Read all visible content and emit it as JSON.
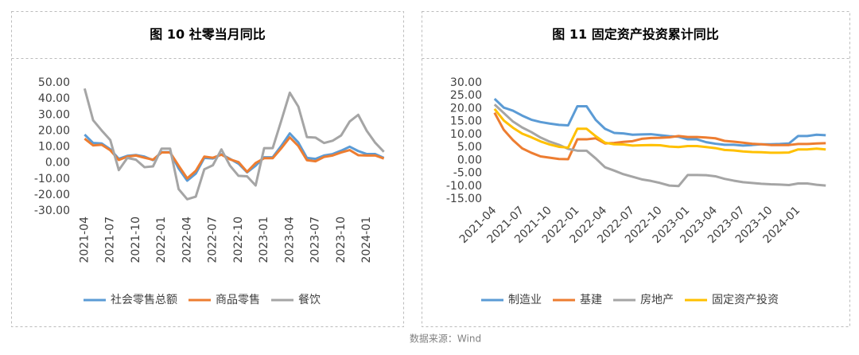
{
  "chart_data": [
    {
      "type": "line",
      "title": "图 10 社零当月同比",
      "categories": [
        "2021-04",
        null,
        null,
        "2021-07",
        null,
        null,
        "2021-10",
        null,
        null,
        "2022-01",
        null,
        null,
        "2022-04",
        null,
        null,
        "2022-07",
        null,
        null,
        "2022-10",
        null,
        null,
        "2023-01",
        null,
        null,
        "2023-04",
        null,
        null,
        "2023-07",
        null,
        null,
        "2023-10",
        null,
        null,
        "2024-01",
        null,
        null
      ],
      "series": [
        {
          "name": "社会零售总额",
          "color": "#5b9bd5",
          "values": [
            17.7,
            12.4,
            12.1,
            8.5,
            2.5,
            4.4,
            4.9,
            3.9,
            1.7,
            6.7,
            6.7,
            -3.5,
            -11.1,
            -6.7,
            3.1,
            2.7,
            5.4,
            2.5,
            -0.5,
            -5.9,
            -1.8,
            3.5,
            3.5,
            10.6,
            18.4,
            12.7,
            3.1,
            2.5,
            4.6,
            5.5,
            7.6,
            10.1,
            7.4,
            5.5,
            5.5,
            3.1
          ]
        },
        {
          "name": "商品零售",
          "color": "#ed7d31",
          "values": [
            15.1,
            10.9,
            11.3,
            7.9,
            1.8,
            3.9,
            4.6,
            3.2,
            2.0,
            6.5,
            6.5,
            -1.8,
            -9.7,
            -5.0,
            3.9,
            3.2,
            5.1,
            2.2,
            0.5,
            -5.6,
            -0.1,
            2.9,
            2.9,
            9.1,
            15.9,
            10.5,
            1.7,
            1.0,
            3.7,
            4.6,
            6.5,
            8.0,
            4.8,
            4.6,
            4.6,
            2.7
          ]
        },
        {
          "name": "餐饮",
          "color": "#a5a5a5",
          "values": [
            46.4,
            26.6,
            20.2,
            14.3,
            -4.5,
            3.1,
            2.0,
            -2.7,
            -2.2,
            8.9,
            8.9,
            -16.4,
            -22.7,
            -21.1,
            -4.0,
            -1.5,
            8.4,
            -1.7,
            -8.1,
            -8.4,
            -14.1,
            9.2,
            9.2,
            26.3,
            43.8,
            35.1,
            16.1,
            15.8,
            12.4,
            13.8,
            17.1,
            25.8,
            30.0,
            20.0,
            12.5,
            6.9
          ]
        }
      ],
      "ylim": [
        -30,
        50
      ],
      "yticks": [
        {
          "value": -30,
          "label": "-30.00"
        },
        {
          "value": -20,
          "label": "-20.00"
        },
        {
          "value": -10,
          "label": "-10.00"
        },
        {
          "value": 0,
          "label": "0.00"
        },
        {
          "value": 10,
          "label": "10.00"
        },
        {
          "value": 20,
          "label": "20.00"
        },
        {
          "value": 30,
          "label": "30.00"
        },
        {
          "value": 40,
          "label": "40.00"
        },
        {
          "value": 50,
          "label": "50.00"
        }
      ],
      "grid": false
    },
    {
      "type": "line",
      "title": "图 11 固定资产投资累计同比",
      "categories": [
        "2021-04",
        null,
        null,
        "2021-07",
        null,
        null,
        "2021-10",
        null,
        null,
        "2022-01",
        null,
        null,
        "2022-04",
        null,
        null,
        "2022-07",
        null,
        null,
        "2022-10",
        null,
        null,
        "2023-01",
        null,
        null,
        "2023-04",
        null,
        null,
        "2023-07",
        null,
        null,
        "2023-10",
        null,
        null,
        "2024-01",
        null,
        null,
        null
      ],
      "series": [
        {
          "name": "制造业",
          "color": "#5b9bd5",
          "values": [
            23.8,
            20.4,
            19.2,
            17.3,
            15.7,
            14.8,
            14.2,
            13.7,
            13.5,
            20.9,
            20.9,
            15.6,
            12.2,
            10.6,
            10.4,
            9.9,
            10.0,
            10.1,
            9.7,
            9.3,
            9.1,
            8.1,
            8.1,
            7.0,
            6.4,
            6.0,
            6.0,
            5.7,
            5.9,
            6.2,
            6.2,
            6.3,
            6.5,
            9.4,
            9.4,
            9.9,
            9.7
          ]
        },
        {
          "name": "基建",
          "color": "#ed7d31",
          "values": [
            18.4,
            11.8,
            7.8,
            4.6,
            2.9,
            1.5,
            1.0,
            0.5,
            0.4,
            8.1,
            8.1,
            8.5,
            6.5,
            6.7,
            7.1,
            7.4,
            8.3,
            8.6,
            8.7,
            8.9,
            9.4,
            9.0,
            9.0,
            8.8,
            8.5,
            7.5,
            7.2,
            6.8,
            6.4,
            6.2,
            5.9,
            5.9,
            5.9,
            6.3,
            6.3,
            6.5,
            6.6
          ]
        },
        {
          "name": "房地产",
          "color": "#a5a5a5",
          "values": [
            21.6,
            18.3,
            15.0,
            12.7,
            10.9,
            8.8,
            7.2,
            6.0,
            4.4,
            3.7,
            3.7,
            0.7,
            -2.7,
            -4.0,
            -5.4,
            -6.4,
            -7.4,
            -8.0,
            -8.8,
            -9.8,
            -10.0,
            -5.7,
            -5.7,
            -5.8,
            -6.2,
            -7.2,
            -7.9,
            -8.5,
            -8.8,
            -9.1,
            -9.3,
            -9.4,
            -9.6,
            -9.0,
            -9.0,
            -9.5,
            -9.8
          ]
        },
        {
          "name": "固定资产投资",
          "color": "#ffc000",
          "values": [
            19.9,
            15.4,
            12.6,
            10.3,
            8.9,
            7.3,
            6.1,
            5.2,
            4.9,
            12.2,
            12.2,
            9.3,
            6.8,
            6.2,
            6.1,
            5.7,
            5.8,
            5.9,
            5.8,
            5.3,
            5.1,
            5.5,
            5.5,
            5.1,
            4.7,
            4.0,
            3.8,
            3.4,
            3.2,
            3.1,
            2.9,
            2.9,
            3.0,
            4.2,
            4.2,
            4.5,
            4.2
          ]
        }
      ],
      "ylim": [
        -15,
        30
      ],
      "yticks": [
        {
          "value": -15,
          "label": "-15.00"
        },
        {
          "value": -10,
          "label": "-10.00"
        },
        {
          "value": -5,
          "label": "-5.00"
        },
        {
          "value": 0,
          "label": "0.00"
        },
        {
          "value": 5,
          "label": "5.00"
        },
        {
          "value": 10,
          "label": "10.00"
        },
        {
          "value": 15,
          "label": "15.00"
        },
        {
          "value": 20,
          "label": "20.00"
        },
        {
          "value": 25,
          "label": "25.00"
        },
        {
          "value": 30,
          "label": "30.00"
        }
      ],
      "grid": false
    }
  ],
  "source": "数据来源：Wind"
}
